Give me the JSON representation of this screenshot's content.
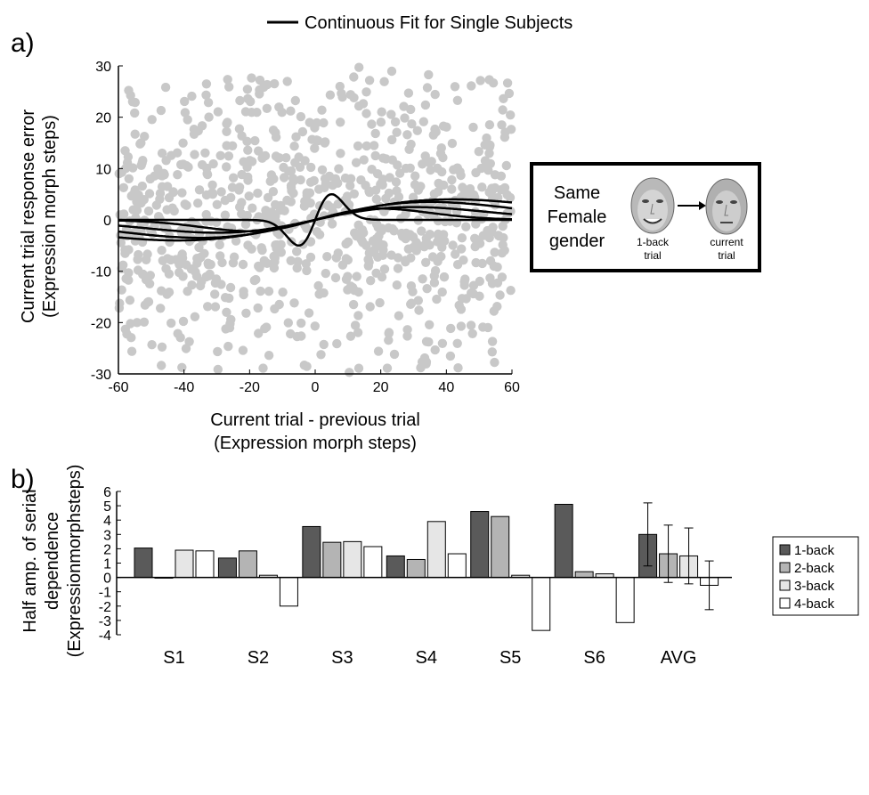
{
  "panel_a": {
    "label": "a)",
    "legend": "Continuous Fit for Single Subjects",
    "ylabel_line1": "Current trial response error",
    "ylabel_line2": "(Expression morph steps)",
    "xlabel_line1": "Current trial - previous trial",
    "xlabel_line2": "(Expression morph steps)",
    "inset": {
      "line1": "Same",
      "line2": "Female",
      "line3": "gender",
      "left_caption_1": "1-back",
      "left_caption_2": "trial",
      "right_caption_1": "current",
      "right_caption_2": "trial"
    }
  },
  "panel_b": {
    "label": "b)",
    "ylabel_line1": "Half amp. of serial",
    "ylabel_line2": "dependence",
    "ylabel_line3": "(Expressionmorphsteps)"
  },
  "colors": {
    "scatter": "#c8c8c8",
    "fit_line": "#000000",
    "bar_1back": "#5a5a5a",
    "bar_2back": "#b4b4b4",
    "bar_3back": "#e6e6e6",
    "bar_4back": "#ffffff"
  },
  "chart_data": [
    {
      "type": "scatter",
      "xlim": [
        -60,
        60
      ],
      "ylim": [
        -30,
        30
      ],
      "xticks": [
        -60,
        -40,
        -20,
        0,
        20,
        40,
        60
      ],
      "yticks": [
        -30,
        -20,
        -10,
        0,
        10,
        20,
        30
      ],
      "grid": false,
      "legend_position": "top",
      "scatter_series": {
        "count": 900,
        "spread_sd": 10
      },
      "fits": [
        {
          "name": "",
          "amp": 5,
          "width": 5
        },
        {
          "name": "",
          "amp": 3.5,
          "width": 35
        },
        {
          "name": "",
          "amp": 2.5,
          "width": 30
        },
        {
          "name": "",
          "amp": 4,
          "width": 42
        },
        {
          "name": "",
          "amp": 2.2,
          "width": 20
        }
      ]
    },
    {
      "type": "bar",
      "categories": [
        "S1",
        "S2",
        "S3",
        "S4",
        "S5",
        "S6",
        "AVG"
      ],
      "ylim": [
        -4,
        6
      ],
      "yticks": [
        -4,
        -3,
        -2,
        -1,
        0,
        1,
        2,
        3,
        4,
        5,
        6
      ],
      "grid": false,
      "legend_position": "right",
      "series": [
        {
          "name": "1-back",
          "values": [
            2.05,
            1.35,
            3.55,
            1.5,
            4.6,
            5.1,
            3.0
          ]
        },
        {
          "name": "2-back",
          "values": [
            -0.05,
            1.85,
            2.45,
            1.25,
            4.25,
            0.4,
            1.65
          ]
        },
        {
          "name": "3-back",
          "values": [
            1.9,
            0.15,
            2.5,
            3.9,
            0.15,
            0.25,
            1.5
          ]
        },
        {
          "name": "4-back",
          "values": [
            1.85,
            -2.0,
            2.15,
            1.65,
            -3.7,
            -3.15,
            -0.55
          ]
        }
      ],
      "error_bars_avg": [
        2.2,
        2.0,
        1.95,
        1.7
      ]
    }
  ]
}
